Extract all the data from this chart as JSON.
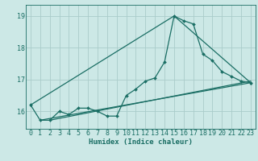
{
  "xlabel": "Humidex (Indice chaleur)",
  "bg_color": "#cce8e6",
  "grid_color": "#aaccca",
  "line_color": "#1a6e64",
  "xlim": [
    -0.5,
    23.5
  ],
  "ylim": [
    15.45,
    19.35
  ],
  "yticks": [
    16,
    17,
    18,
    19
  ],
  "xticks": [
    0,
    1,
    2,
    3,
    4,
    5,
    6,
    7,
    8,
    9,
    10,
    11,
    12,
    13,
    14,
    15,
    16,
    17,
    18,
    19,
    20,
    21,
    22,
    23
  ],
  "series1_x": [
    0,
    1,
    2,
    3,
    4,
    5,
    6,
    7,
    8,
    9,
    10,
    11,
    12,
    13,
    14,
    15,
    16,
    17,
    18,
    19,
    20,
    21,
    22,
    23
  ],
  "series1_y": [
    16.2,
    15.72,
    15.72,
    16.0,
    15.9,
    16.1,
    16.1,
    16.0,
    15.85,
    15.85,
    16.5,
    16.7,
    16.95,
    17.05,
    17.55,
    19.0,
    18.85,
    18.75,
    17.8,
    17.6,
    17.25,
    17.1,
    16.95,
    16.9
  ],
  "line2_x": [
    0,
    15,
    23
  ],
  "line2_y": [
    16.2,
    19.0,
    16.9
  ],
  "line3_x": [
    1,
    23
  ],
  "line3_y": [
    15.72,
    16.9
  ],
  "line4_x": [
    2,
    23
  ],
  "line4_y": [
    15.72,
    16.95
  ]
}
